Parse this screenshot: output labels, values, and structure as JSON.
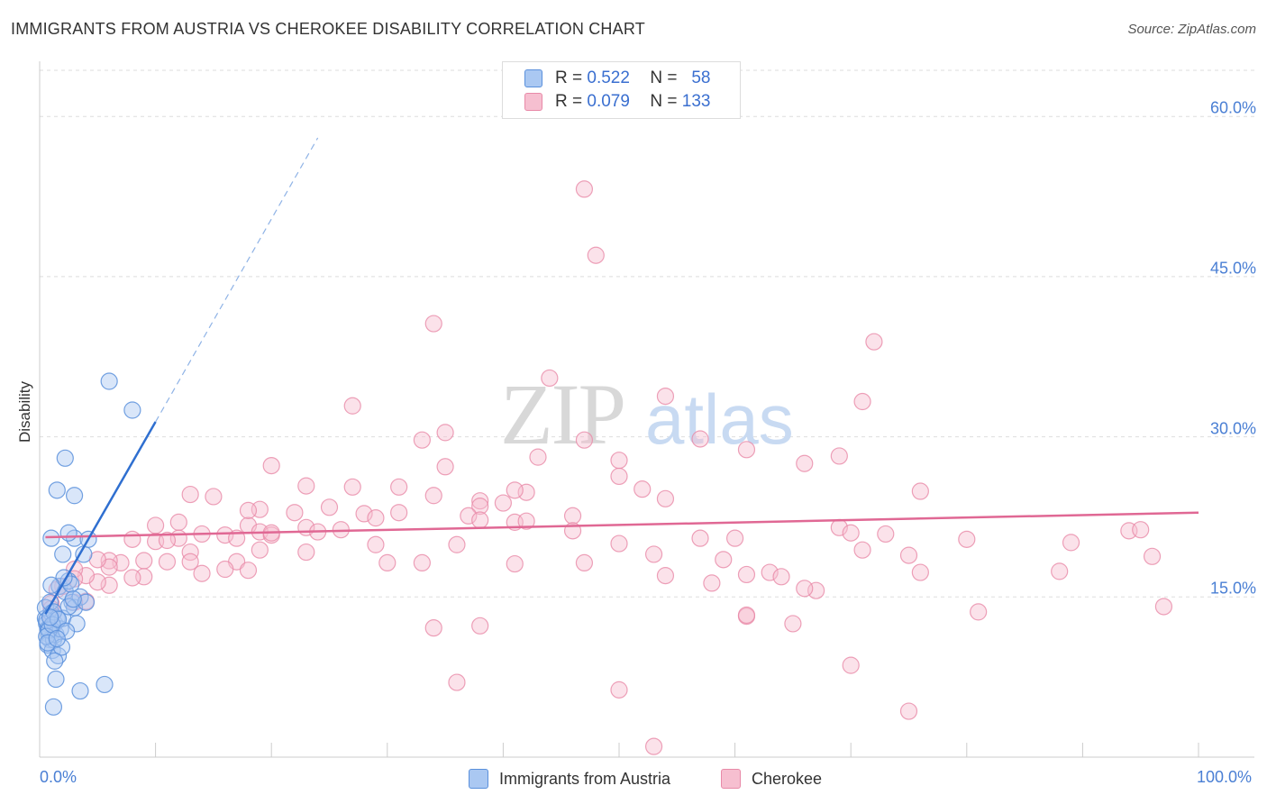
{
  "title": "IMMIGRANTS FROM AUSTRIA VS CHEROKEE DISABILITY CORRELATION CHART",
  "source": "Source: ZipAtlas.com",
  "watermark": {
    "zip": "ZIP",
    "atlas": "atlas"
  },
  "colors": {
    "blue_fill": "#aac8f2",
    "blue_stroke": "#5a90dc",
    "blue_line": "#2f6fd0",
    "pink_fill": "#f6bfd0",
    "pink_stroke": "#e88aa8",
    "pink_line": "#e06894",
    "axis_text": "#4a7fd4",
    "grid": "#dddddd"
  },
  "stats": {
    "row1": {
      "r_label": "R =",
      "r_value": "0.522",
      "n_label": "N =",
      "n_value": "58"
    },
    "row2": {
      "r_label": "R =",
      "r_value": "0.079",
      "n_label": "N =",
      "n_value": "133"
    }
  },
  "legend": {
    "blue": "Immigrants from Austria",
    "pink": "Cherokee"
  },
  "chart_data": {
    "type": "scatter",
    "title": "IMMIGRANTS FROM AUSTRIA VS CHEROKEE DISABILITY CORRELATION CHART",
    "xlabel": "",
    "ylabel": "Disability",
    "xlim": [
      0,
      100
    ],
    "ylim": [
      0,
      65
    ],
    "x_tick_labels": [
      "0.0%",
      "100.0%"
    ],
    "y_ticks": [
      15,
      30,
      45,
      60
    ],
    "y_tick_labels": [
      "15.0%",
      "30.0%",
      "45.0%",
      "60.0%"
    ],
    "grid": true,
    "legend_position": "bottom-center",
    "series": [
      {
        "name": "Immigrants from Austria",
        "R": 0.522,
        "N": 58,
        "trend": {
          "x0": 0.5,
          "y0": 13.4,
          "x1": 10,
          "y1": 31.4,
          "dashed_to_x": 24,
          "dashed_to_y": 58.0
        },
        "points": [
          [
            0.5,
            13.0
          ],
          [
            0.6,
            12.5
          ],
          [
            0.7,
            12.0
          ],
          [
            0.8,
            11.5
          ],
          [
            0.9,
            11.0
          ],
          [
            1.0,
            13.5
          ],
          [
            0.5,
            14.0
          ],
          [
            0.7,
            10.5
          ],
          [
            0.8,
            12.0
          ],
          [
            1.2,
            11.0
          ],
          [
            1.3,
            12.5
          ],
          [
            1.5,
            13.0
          ],
          [
            1.1,
            10.0
          ],
          [
            1.6,
            9.5
          ],
          [
            1.4,
            11.5
          ],
          [
            1.8,
            12.0
          ],
          [
            2.0,
            13.0
          ],
          [
            0.9,
            14.5
          ],
          [
            1.7,
            16.0
          ],
          [
            2.2,
            15.5
          ],
          [
            2.5,
            16.5
          ],
          [
            2.8,
            14.5
          ],
          [
            3.0,
            14.0
          ],
          [
            3.5,
            15.0
          ],
          [
            4.0,
            14.5
          ],
          [
            3.8,
            19.0
          ],
          [
            3.0,
            20.5
          ],
          [
            2.5,
            21.0
          ],
          [
            1.0,
            20.5
          ],
          [
            2.0,
            19.0
          ],
          [
            2.2,
            28.0
          ],
          [
            1.5,
            25.0
          ],
          [
            3.0,
            24.5
          ],
          [
            6.0,
            35.2
          ],
          [
            8.0,
            32.5
          ],
          [
            0.6,
            12.8
          ],
          [
            1.2,
            13.6
          ],
          [
            1.9,
            10.3
          ],
          [
            1.3,
            9.0
          ],
          [
            1.4,
            7.3
          ],
          [
            3.5,
            6.2
          ],
          [
            5.6,
            6.8
          ],
          [
            1.2,
            4.7
          ],
          [
            0.8,
            11.9
          ],
          [
            0.6,
            11.3
          ],
          [
            1.1,
            12.4
          ],
          [
            2.5,
            14.1
          ],
          [
            2.7,
            16.2
          ],
          [
            2.9,
            14.8
          ],
          [
            3.2,
            12.5
          ],
          [
            1.6,
            12.9
          ],
          [
            0.9,
            13.1
          ],
          [
            2.1,
            16.8
          ],
          [
            4.2,
            20.4
          ],
          [
            1.0,
            16.1
          ],
          [
            0.7,
            10.7
          ],
          [
            2.3,
            11.8
          ],
          [
            1.5,
            11.1
          ]
        ]
      },
      {
        "name": "Cherokee",
        "R": 0.079,
        "N": 133,
        "trend": {
          "x0": 0.5,
          "y0": 20.6,
          "x1": 100,
          "y1": 22.9
        },
        "points": [
          [
            47,
            53.2
          ],
          [
            48,
            47.0
          ],
          [
            34,
            40.6
          ],
          [
            72,
            38.9
          ],
          [
            44,
            35.5
          ],
          [
            54,
            33.8
          ],
          [
            71,
            33.3
          ],
          [
            27,
            32.9
          ],
          [
            35,
            30.4
          ],
          [
            33,
            29.7
          ],
          [
            47,
            29.7
          ],
          [
            57,
            29.8
          ],
          [
            61,
            28.8
          ],
          [
            43,
            28.1
          ],
          [
            69,
            28.2
          ],
          [
            50,
            27.8
          ],
          [
            66,
            27.5
          ],
          [
            20,
            27.3
          ],
          [
            35,
            27.2
          ],
          [
            50,
            26.3
          ],
          [
            31,
            25.3
          ],
          [
            23,
            25.4
          ],
          [
            27,
            25.3
          ],
          [
            42,
            24.8
          ],
          [
            41,
            25.0
          ],
          [
            52,
            25.1
          ],
          [
            76,
            24.9
          ],
          [
            13,
            24.6
          ],
          [
            15,
            24.4
          ],
          [
            34,
            24.5
          ],
          [
            38,
            24.0
          ],
          [
            54,
            24.2
          ],
          [
            38,
            23.5
          ],
          [
            40,
            23.8
          ],
          [
            25,
            23.4
          ],
          [
            19,
            23.2
          ],
          [
            22,
            22.9
          ],
          [
            28,
            22.8
          ],
          [
            31,
            22.9
          ],
          [
            37,
            22.6
          ],
          [
            29,
            22.4
          ],
          [
            38,
            22.2
          ],
          [
            41,
            22.0
          ],
          [
            46,
            22.6
          ],
          [
            12,
            22.0
          ],
          [
            10,
            21.7
          ],
          [
            18,
            21.7
          ],
          [
            23,
            21.5
          ],
          [
            26,
            21.3
          ],
          [
            19,
            21.1
          ],
          [
            20,
            20.8
          ],
          [
            14,
            20.9
          ],
          [
            16,
            20.8
          ],
          [
            12,
            20.5
          ],
          [
            10,
            20.2
          ],
          [
            8,
            20.4
          ],
          [
            11,
            20.3
          ],
          [
            17,
            20.5
          ],
          [
            24,
            21.1
          ],
          [
            20,
            21.0
          ],
          [
            13,
            19.2
          ],
          [
            19,
            19.4
          ],
          [
            23,
            19.2
          ],
          [
            29,
            19.9
          ],
          [
            36,
            19.9
          ],
          [
            50,
            20.0
          ],
          [
            53,
            19.0
          ],
          [
            60,
            20.5
          ],
          [
            57,
            20.5
          ],
          [
            69,
            21.5
          ],
          [
            70,
            21.0
          ],
          [
            71,
            19.4
          ],
          [
            80,
            20.4
          ],
          [
            94,
            21.2
          ],
          [
            96,
            18.8
          ],
          [
            75,
            18.9
          ],
          [
            63,
            17.3
          ],
          [
            54,
            17.0
          ],
          [
            47,
            18.2
          ],
          [
            41,
            18.1
          ],
          [
            33,
            18.2
          ],
          [
            30,
            18.2
          ],
          [
            17,
            18.3
          ],
          [
            13,
            18.3
          ],
          [
            11,
            18.3
          ],
          [
            9,
            18.4
          ],
          [
            7,
            18.2
          ],
          [
            6,
            18.4
          ],
          [
            6,
            17.8
          ],
          [
            5,
            18.5
          ],
          [
            16,
            17.6
          ],
          [
            18,
            17.5
          ],
          [
            14,
            17.2
          ],
          [
            9,
            16.9
          ],
          [
            8,
            16.8
          ],
          [
            6,
            16.1
          ],
          [
            5,
            16.4
          ],
          [
            4,
            17.0
          ],
          [
            3,
            17.6
          ],
          [
            3,
            16.7
          ],
          [
            2,
            16.0
          ],
          [
            1.5,
            15.7
          ],
          [
            4,
            14.6
          ],
          [
            3,
            14.5
          ],
          [
            1,
            14.4
          ],
          [
            1,
            13.9
          ],
          [
            1,
            13.2
          ],
          [
            58,
            16.3
          ],
          [
            64,
            16.9
          ],
          [
            67,
            15.6
          ],
          [
            66,
            15.8
          ],
          [
            76,
            17.3
          ],
          [
            88,
            17.4
          ],
          [
            97,
            14.1
          ],
          [
            61,
            13.2
          ],
          [
            61,
            13.3
          ],
          [
            65,
            12.5
          ],
          [
            38,
            12.3
          ],
          [
            70,
            8.6
          ],
          [
            36,
            7.0
          ],
          [
            50,
            6.3
          ],
          [
            75,
            4.3
          ],
          [
            53,
            1.0
          ],
          [
            34,
            12.1
          ],
          [
            81,
            13.6
          ],
          [
            95,
            21.3
          ],
          [
            89,
            20.1
          ],
          [
            59,
            18.5
          ],
          [
            61,
            17.1
          ],
          [
            73,
            20.9
          ],
          [
            18,
            23.1
          ],
          [
            42,
            22.1
          ],
          [
            46,
            21.2
          ]
        ]
      }
    ]
  }
}
